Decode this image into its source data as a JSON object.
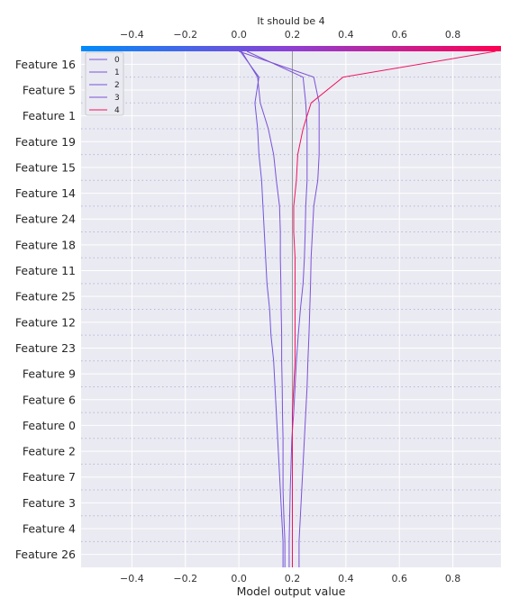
{
  "chart_data": {
    "type": "line",
    "chart_kind": "decision_plot",
    "title": "It should be 4",
    "xlabel": "Model output value",
    "xlim": [
      -0.59,
      0.98
    ],
    "x_ticks": [
      "−0.4",
      "−0.2",
      "0.0",
      "0.2",
      "0.4",
      "0.6",
      "0.8"
    ],
    "x_tick_values": [
      -0.4,
      -0.2,
      0.0,
      0.2,
      0.4,
      0.6,
      0.8
    ],
    "base_value": 0.2,
    "features": [
      "Feature 26",
      "Feature 4",
      "Feature 3",
      "Feature 7",
      "Feature 2",
      "Feature 0",
      "Feature 6",
      "Feature 9",
      "Feature 23",
      "Feature 12",
      "Feature 25",
      "Feature 11",
      "Feature 18",
      "Feature 24",
      "Feature 14",
      "Feature 15",
      "Feature 19",
      "Feature 1",
      "Feature 5",
      "Feature 16"
    ],
    "colorbar": {
      "start_color": "#008bfb",
      "mid_color": "#8d3fd4",
      "end_color": "#ff0051"
    },
    "grid": true,
    "legend_position": "top-left",
    "series": [
      {
        "name": "0",
        "color": "#7b52d6",
        "values": [
          0.188,
          0.19,
          0.192,
          0.195,
          0.198,
          0.205,
          0.21,
          0.215,
          0.222,
          0.23,
          0.24,
          0.245,
          0.248,
          0.25,
          0.255,
          0.255,
          0.255,
          0.25,
          0.24,
          0.03
        ]
      },
      {
        "name": "1",
        "color": "#7c51d5",
        "values": [
          0.225,
          0.23,
          0.235,
          0.24,
          0.245,
          0.25,
          0.255,
          0.258,
          0.262,
          0.265,
          0.268,
          0.27,
          0.275,
          0.28,
          0.295,
          0.3,
          0.3,
          0.3,
          0.28,
          0.0
        ]
      },
      {
        "name": "2",
        "color": "#7156da",
        "values": [
          0.165,
          0.16,
          0.155,
          0.15,
          0.145,
          0.14,
          0.135,
          0.13,
          0.12,
          0.115,
          0.105,
          0.1,
          0.095,
          0.09,
          0.085,
          0.075,
          0.07,
          0.06,
          0.075,
          0.005
        ]
      },
      {
        "name": "3",
        "color": "#7a52d6",
        "values": [
          0.172,
          0.168,
          0.165,
          0.165,
          0.165,
          0.163,
          0.162,
          0.16,
          0.16,
          0.158,
          0.157,
          0.155,
          0.155,
          0.152,
          0.14,
          0.13,
          0.11,
          0.08,
          0.07,
          0.01
        ]
      },
      {
        "name": "4",
        "color": "#f0125f",
        "values": [
          0.2,
          0.2,
          0.2,
          0.2,
          0.2,
          0.2,
          0.205,
          0.21,
          0.21,
          0.21,
          0.21,
          0.21,
          0.205,
          0.205,
          0.215,
          0.22,
          0.24,
          0.27,
          0.39,
          0.96
        ]
      }
    ]
  }
}
